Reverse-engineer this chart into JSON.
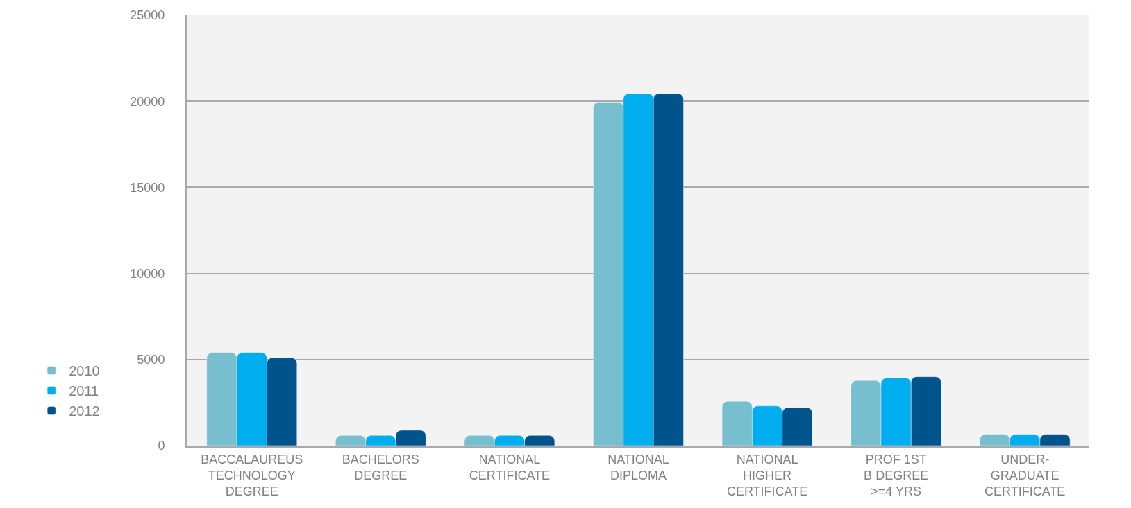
{
  "chart_data": {
    "type": "bar",
    "categories": [
      "BACCALAUREUS TECHNOLOGY DEGREE",
      "BACHELORS DEGREE",
      "NATIONAL CERTIFICATE",
      "NATIONAL DIPLOMA",
      "NATIONAL HIGHER CERTIFICATE",
      "PROF 1ST B DEGREE >=4 YRS",
      "UNDER-GRADUATE CERTIFICATE"
    ],
    "series": [
      {
        "name": "2010",
        "color": "#77bfcf",
        "values": [
          5400,
          590,
          590,
          19950,
          2570,
          3770,
          650
        ]
      },
      {
        "name": "2011",
        "color": "#00adee",
        "values": [
          5400,
          590,
          590,
          20450,
          2300,
          3930,
          650
        ]
      },
      {
        "name": "2012",
        "color": "#00548c",
        "values": [
          5100,
          890,
          590,
          20450,
          2210,
          4000,
          650
        ]
      }
    ],
    "ylim": [
      0,
      25000
    ],
    "yticks": [
      0,
      5000,
      10000,
      15000,
      20000,
      25000
    ],
    "grid": "y",
    "legend": "bottom left"
  }
}
